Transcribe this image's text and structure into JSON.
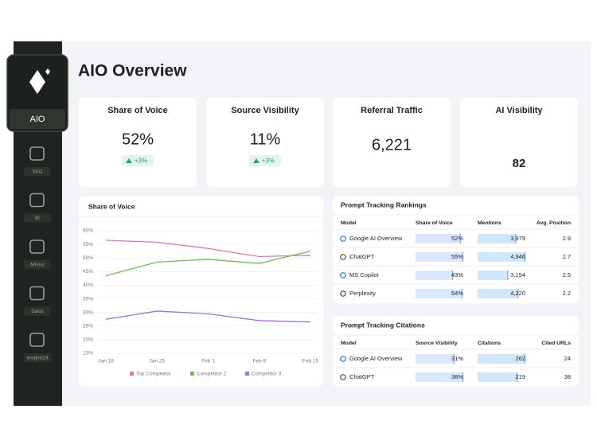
{
  "sidebar": {
    "brand": "AIO",
    "items": [
      "SEO",
      "BI",
      "MFour",
      "Dalos",
      "Insights24"
    ]
  },
  "header": {
    "title": "AIO Overview"
  },
  "kpis": [
    {
      "title": "Share of Voice",
      "value": "52%",
      "delta": "+3%"
    },
    {
      "title": "Source Visibility",
      "value": "11%",
      "delta": "+3%"
    },
    {
      "title": "Referral Traffic",
      "value": "6,221"
    },
    {
      "title": "AI Visibility",
      "value": 82
    }
  ],
  "chart_data": {
    "type": "line",
    "title": "Share of Voice",
    "categories": [
      "Jan 18",
      "Jan 25",
      "Feb 1",
      "Feb 8",
      "Feb 15"
    ],
    "series": [
      {
        "name": "Top Competitor",
        "color": "#e46fc4",
        "values": [
          56.5,
          55.8,
          53.5,
          50.5,
          51
        ]
      },
      {
        "name": "Competitor 2",
        "color": "#6cc04a",
        "values": [
          43.5,
          48.5,
          49.5,
          48,
          52.5
        ]
      },
      {
        "name": "Competitor 3",
        "color": "#a56be6",
        "values": [
          27.5,
          30.5,
          29.5,
          27,
          26.5
        ]
      }
    ],
    "ylim": [
      15,
      60
    ],
    "yticks": [
      {
        "value": 15,
        "label": "15%"
      },
      {
        "value": 20,
        "label": "20%"
      },
      {
        "value": 25,
        "label": "25%"
      },
      {
        "value": 30,
        "label": "30%"
      },
      {
        "value": 35,
        "label": "35%"
      },
      {
        "value": 40,
        "label": "40%"
      },
      {
        "value": 45,
        "label": "45%"
      },
      {
        "value": 50,
        "label": "50%"
      },
      {
        "value": 55,
        "label": "55%"
      },
      {
        "value": 60,
        "label": "60%"
      }
    ],
    "grid": true
  },
  "rankings": {
    "title": "Prompt Tracking Rankings",
    "columns": [
      "Model",
      "Share of Voice",
      "Mentions",
      "Avg. Position"
    ],
    "rows": [
      [
        "Google AI Overview",
        {
          "value": 52,
          "label": "52%"
        },
        {
          "value": 3979,
          "label": "3,979"
        },
        2.9
      ],
      [
        "ChatGPT",
        {
          "value": 55,
          "label": "55%"
        },
        {
          "value": 4946,
          "label": "4,946"
        },
        2.7
      ],
      [
        "MS Copilot",
        {
          "value": 43,
          "label": "43%"
        },
        {
          "value": 3154,
          "label": "3,154"
        },
        2.5
      ],
      [
        "Perplexity",
        {
          "value": 54,
          "label": "54%"
        },
        {
          "value": 4220,
          "label": "4,220"
        },
        2.2
      ]
    ]
  },
  "citations": {
    "title": "Prompt Tracking Citations",
    "columns": [
      "Model",
      "Source Visibility",
      "Citations",
      "Cited URLs"
    ],
    "rows": [
      [
        "Google AI Overview",
        {
          "value": 31,
          "label": "31%"
        },
        262,
        24
      ],
      [
        "ChatGPT",
        {
          "value": 38,
          "label": "38%"
        },
        219,
        38
      ]
    ]
  }
}
